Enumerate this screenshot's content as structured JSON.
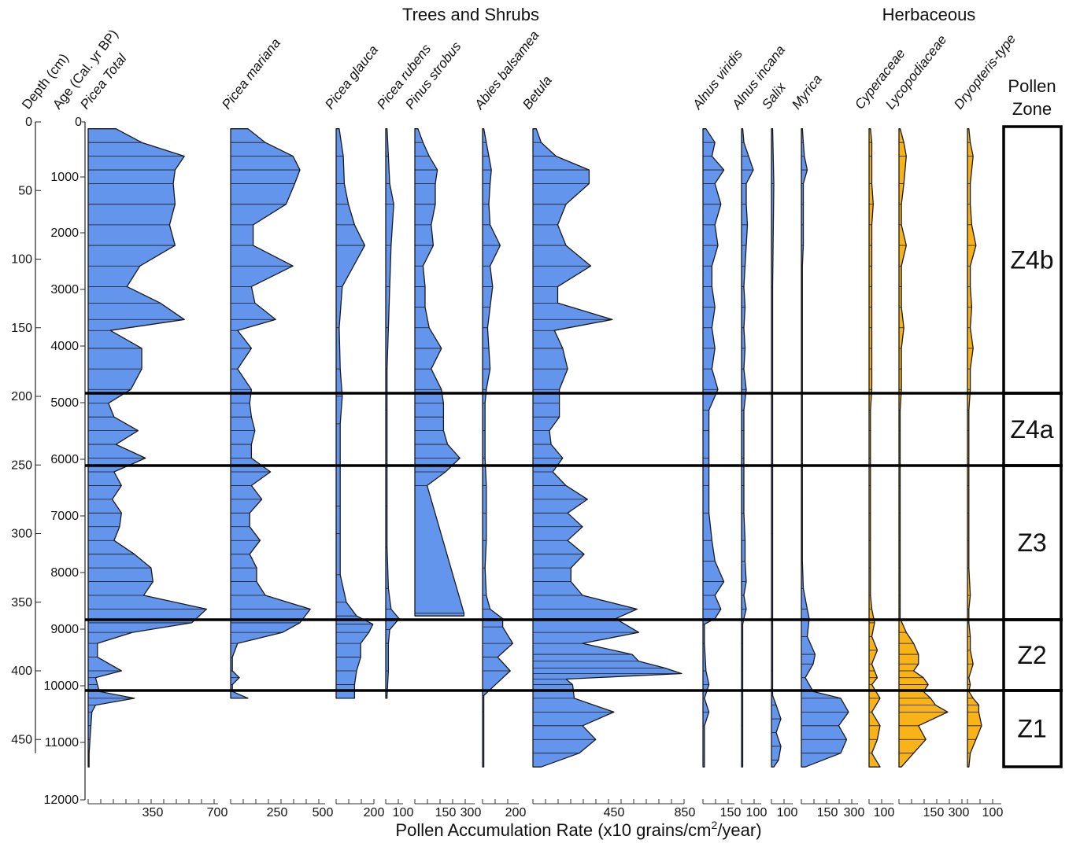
{
  "chart_data": {
    "type": "area",
    "title": "",
    "group_labels": [
      "Trees and Shrubs",
      "Herbaceous"
    ],
    "ylabel_depth": "Depth (cm)",
    "ylabel_age": "Age (Cal. yr BP)",
    "xlabel": {
      "main": "Pollen Accumulation Rate (x10 grains/cm",
      "sup": "2",
      "end": "/year)"
    },
    "depth_range": [
      0,
      470
    ],
    "depth_ticks": [
      "0",
      "50",
      "100",
      "150",
      "200",
      "250",
      "300",
      "350",
      "400",
      "450"
    ],
    "age_ticks": [
      "1000",
      "2000",
      "3000",
      "4000",
      "5000",
      "6000",
      "7000",
      "8000",
      "9000",
      "10000",
      "11000",
      "12000"
    ],
    "zones_header": [
      "Pollen",
      "Zone"
    ],
    "zones": [
      {
        "name": "Z4b",
        "top": 0,
        "bottom": 198
      },
      {
        "name": "Z4a",
        "top": 198,
        "bottom": 252
      },
      {
        "name": "Z3",
        "top": 252,
        "bottom": 366
      },
      {
        "name": "Z2",
        "top": 366,
        "bottom": 418
      },
      {
        "name": "Z1",
        "top": 418,
        "bottom": 470
      }
    ],
    "taxa": [
      {
        "name": "Picea Total",
        "group": "trees",
        "ticks": [
          "350",
          "700"
        ],
        "depths": [
          5,
          15,
          25,
          35,
          45,
          60,
          75,
          90,
          105,
          120,
          132,
          144,
          152,
          165,
          180,
          195,
          205,
          215,
          225,
          235,
          245,
          255,
          265,
          275,
          285,
          295,
          305,
          315,
          325,
          335,
          345,
          355,
          365,
          372,
          380,
          390,
          400,
          405,
          410,
          415,
          420,
          425,
          430,
          440,
          450,
          460,
          470
        ],
        "values": [
          150,
          290,
          520,
          470,
          460,
          470,
          440,
          470,
          280,
          210,
          390,
          520,
          120,
          290,
          290,
          230,
          110,
          140,
          270,
          150,
          310,
          140,
          180,
          130,
          180,
          170,
          140,
          250,
          340,
          350,
          300,
          640,
          560,
          240,
          50,
          50,
          180,
          40,
          50,
          60,
          250,
          40,
          20,
          15,
          10,
          5,
          5
        ]
      },
      {
        "name": "Picea mariana",
        "group": "trees",
        "ticks": [
          "250",
          "500"
        ],
        "depths": [
          5,
          15,
          25,
          35,
          45,
          60,
          75,
          90,
          105,
          120,
          132,
          144,
          152,
          165,
          180,
          195,
          205,
          215,
          225,
          235,
          245,
          255,
          265,
          275,
          285,
          295,
          305,
          315,
          325,
          335,
          345,
          355,
          365,
          372,
          380,
          390,
          400,
          405,
          410,
          415,
          420
        ],
        "values": [
          100,
          200,
          360,
          400,
          370,
          320,
          130,
          130,
          360,
          120,
          140,
          260,
          40,
          120,
          40,
          120,
          110,
          120,
          140,
          120,
          120,
          230,
          120,
          180,
          110,
          110,
          170,
          110,
          150,
          150,
          200,
          460,
          400,
          300,
          40,
          10,
          10,
          50,
          10,
          10,
          100
        ]
      },
      {
        "name": "Picea glauca",
        "group": "trees",
        "ticks": [
          "200"
        ],
        "depths": [
          5,
          25,
          45,
          60,
          75,
          90,
          120,
          150,
          180,
          200,
          220,
          250,
          280,
          300,
          330,
          350,
          360,
          366,
          372,
          380,
          390,
          400,
          410,
          420
        ],
        "values": [
          15,
          35,
          40,
          60,
          90,
          140,
          30,
          15,
          20,
          30,
          20,
          20,
          20,
          20,
          20,
          50,
          100,
          180,
          160,
          120,
          120,
          100,
          90,
          90
        ]
      },
      {
        "name": "Picea rubens",
        "group": "trees",
        "ticks": [
          "100"
        ],
        "depths": [
          5,
          25,
          45,
          60,
          90,
          120,
          150,
          180,
          210,
          250,
          280,
          310,
          340,
          355,
          362,
          370,
          380,
          400,
          418,
          420
        ],
        "values": [
          5,
          10,
          15,
          30,
          20,
          15,
          10,
          5,
          5,
          5,
          5,
          5,
          10,
          20,
          50,
          15,
          10,
          10,
          5,
          5
        ]
      },
      {
        "name": "Pinus strobus",
        "group": "trees",
        "ticks": [
          "150",
          "300"
        ],
        "depths": [
          5,
          15,
          25,
          35,
          45,
          60,
          75,
          90,
          105,
          120,
          135,
          150,
          165,
          180,
          195,
          205,
          215,
          225,
          235,
          245,
          255,
          265,
          358,
          360
        ],
        "values": [
          15,
          40,
          70,
          110,
          100,
          100,
          80,
          90,
          40,
          50,
          50,
          70,
          130,
          80,
          130,
          140,
          140,
          140,
          160,
          220,
          150,
          60,
          240,
          240
        ]
      },
      {
        "name": "Abies balsamea",
        "group": "trees",
        "ticks": [
          "200"
        ],
        "depths": [
          5,
          15,
          25,
          35,
          45,
          60,
          75,
          90,
          105,
          120,
          135,
          150,
          165,
          180,
          195,
          205,
          225,
          245,
          265,
          285,
          305,
          325,
          345,
          355,
          362,
          368,
          380,
          390,
          400,
          418,
          430,
          470
        ],
        "values": [
          5,
          15,
          25,
          35,
          30,
          25,
          30,
          70,
          30,
          40,
          30,
          20,
          25,
          30,
          15,
          10,
          10,
          10,
          15,
          15,
          15,
          10,
          15,
          30,
          80,
          80,
          120,
          60,
          110,
          5,
          5,
          5
        ]
      },
      {
        "name": "Betula",
        "group": "trees",
        "ticks": [
          "450",
          "850"
        ],
        "depths": [
          5,
          15,
          25,
          35,
          45,
          60,
          75,
          90,
          105,
          120,
          132,
          144,
          152,
          165,
          180,
          195,
          205,
          215,
          225,
          235,
          245,
          255,
          265,
          275,
          285,
          295,
          305,
          315,
          325,
          335,
          345,
          355,
          362,
          372,
          380,
          388,
          393,
          398,
          402,
          406,
          410,
          420,
          430,
          440,
          450,
          460,
          470
        ],
        "values": [
          20,
          50,
          140,
          340,
          340,
          200,
          150,
          200,
          350,
          150,
          150,
          480,
          130,
          180,
          210,
          160,
          160,
          160,
          100,
          110,
          180,
          120,
          200,
          330,
          210,
          300,
          210,
          310,
          230,
          230,
          300,
          630,
          500,
          640,
          300,
          600,
          640,
          800,
          900,
          200,
          240,
          250,
          490,
          300,
          380,
          280,
          50
        ]
      },
      {
        "name": "Alnus viridis",
        "group": "trees",
        "ticks": [
          "150"
        ],
        "depths": [
          5,
          15,
          25,
          35,
          45,
          60,
          75,
          90,
          105,
          120,
          135,
          150,
          165,
          180,
          195,
          210,
          225,
          245,
          265,
          285,
          305,
          320,
          335,
          345,
          355,
          362,
          366,
          380,
          400,
          410,
          420,
          430,
          440,
          470
        ],
        "values": [
          10,
          40,
          30,
          70,
          40,
          60,
          40,
          50,
          30,
          30,
          40,
          30,
          40,
          30,
          50,
          20,
          20,
          20,
          20,
          20,
          30,
          40,
          70,
          40,
          60,
          40,
          5,
          5,
          10,
          20,
          5,
          20,
          5,
          5
        ]
      },
      {
        "name": "Alnus incana",
        "group": "trees",
        "ticks": [
          "100"
        ],
        "depths": [
          5,
          15,
          25,
          35,
          45,
          60,
          75,
          90,
          105,
          120,
          135,
          150,
          165,
          180,
          195,
          210,
          225,
          245,
          265,
          285,
          305,
          320,
          335,
          345,
          355,
          362,
          366,
          380,
          400,
          418,
          440,
          470
        ],
        "values": [
          5,
          10,
          30,
          50,
          20,
          20,
          25,
          20,
          15,
          10,
          15,
          10,
          15,
          10,
          20,
          10,
          10,
          10,
          10,
          10,
          15,
          15,
          20,
          10,
          20,
          10,
          5,
          5,
          5,
          5,
          5,
          5
        ]
      },
      {
        "name": "Salix",
        "group": "trees",
        "ticks": [
          "100"
        ],
        "depths": [
          5,
          45,
          120,
          200,
          300,
          366,
          400,
          418,
          425,
          435,
          445,
          455,
          465,
          470
        ],
        "values": [
          5,
          10,
          5,
          5,
          5,
          5,
          5,
          5,
          20,
          40,
          20,
          40,
          30,
          10
        ]
      },
      {
        "name": "Myrica",
        "group": "trees",
        "ticks": [
          "150",
          "300"
        ],
        "depths": [
          5,
          15,
          25,
          35,
          45,
          60,
          75,
          90,
          105,
          120,
          135,
          150,
          165,
          180,
          195,
          210,
          225,
          245,
          265,
          285,
          305,
          320,
          340,
          355,
          362,
          375,
          388,
          395,
          405,
          415,
          420,
          430,
          440,
          450,
          460,
          470
        ],
        "values": [
          5,
          10,
          15,
          30,
          10,
          10,
          10,
          10,
          5,
          5,
          5,
          5,
          5,
          5,
          5,
          5,
          5,
          5,
          5,
          5,
          5,
          5,
          10,
          30,
          40,
          30,
          70,
          60,
          20,
          60,
          200,
          240,
          190,
          230,
          200,
          20
        ]
      },
      {
        "name": "Cyperaceae",
        "group": "herbaceous",
        "ticks": [
          "100"
        ],
        "depths": [
          5,
          15,
          25,
          45,
          60,
          75,
          90,
          105,
          120,
          135,
          150,
          165,
          180,
          195,
          210,
          225,
          245,
          265,
          285,
          305,
          325,
          345,
          355,
          365,
          375,
          385,
          395,
          400,
          405,
          410,
          420,
          430,
          440,
          450,
          460,
          470
        ],
        "values": [
          5,
          10,
          10,
          10,
          15,
          10,
          10,
          10,
          10,
          10,
          10,
          10,
          10,
          10,
          5,
          5,
          5,
          5,
          5,
          5,
          5,
          5,
          10,
          20,
          10,
          30,
          10,
          20,
          30,
          10,
          40,
          10,
          40,
          30,
          10,
          40
        ]
      },
      {
        "name": "Lycopodiaceae",
        "group": "herbaceous",
        "ticks": [
          "150",
          "300"
        ],
        "depths": [
          5,
          15,
          25,
          45,
          60,
          75,
          90,
          105,
          120,
          135,
          150,
          165,
          180,
          195,
          210,
          225,
          245,
          265,
          285,
          305,
          325,
          345,
          355,
          362,
          372,
          380,
          388,
          395,
          400,
          405,
          410,
          415,
          420,
          425,
          430,
          440,
          450,
          460,
          470
        ],
        "values": [
          5,
          20,
          30,
          20,
          10,
          10,
          30,
          10,
          10,
          10,
          20,
          10,
          10,
          10,
          5,
          5,
          5,
          5,
          5,
          5,
          5,
          5,
          5,
          5,
          30,
          60,
          80,
          80,
          60,
          100,
          120,
          100,
          130,
          150,
          200,
          80,
          110,
          60,
          10
        ]
      },
      {
        "name": "Dryopteris-type",
        "group": "herbaceous",
        "ticks": [
          "100"
        ],
        "depths": [
          5,
          15,
          25,
          45,
          60,
          75,
          90,
          105,
          120,
          135,
          150,
          165,
          180,
          195,
          210,
          225,
          245,
          265,
          285,
          305,
          325,
          345,
          355,
          365,
          375,
          385,
          395,
          405,
          410,
          415,
          420,
          425,
          430,
          440,
          450,
          460,
          470
        ],
        "values": [
          5,
          10,
          20,
          10,
          10,
          15,
          30,
          10,
          10,
          15,
          10,
          20,
          10,
          10,
          5,
          5,
          5,
          5,
          5,
          5,
          5,
          10,
          5,
          5,
          10,
          10,
          20,
          5,
          10,
          5,
          20,
          40,
          40,
          50,
          30,
          10,
          5
        ]
      }
    ]
  }
}
